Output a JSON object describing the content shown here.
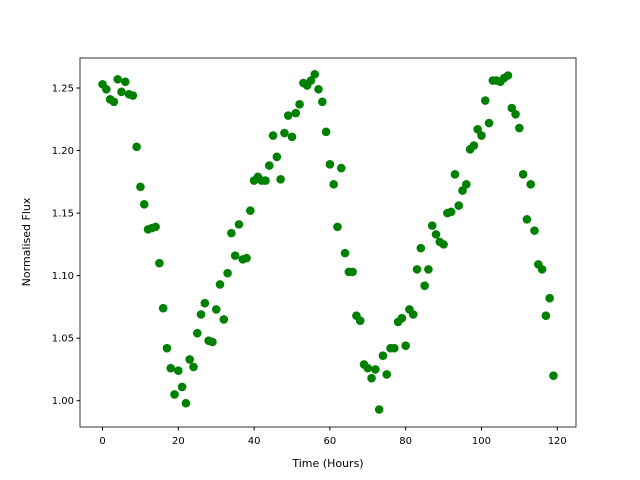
{
  "chart_data": {
    "type": "scatter",
    "xlabel": "Time (Hours)",
    "ylabel": "Normalised Flux",
    "color": "#008000",
    "x": [
      0,
      1,
      2,
      3,
      4,
      5,
      6,
      7,
      8,
      9,
      10,
      11,
      12,
      13,
      14,
      15,
      16,
      17,
      18,
      19,
      20,
      21,
      22,
      23,
      24,
      25,
      26,
      27,
      28,
      29,
      30,
      31,
      32,
      33,
      34,
      35,
      36,
      37,
      38,
      39,
      40,
      41,
      42,
      43,
      44,
      45,
      46,
      47,
      48,
      49,
      50,
      51,
      52,
      53,
      54,
      55,
      56,
      57,
      58,
      59,
      60,
      61,
      62,
      63,
      64,
      65,
      66,
      67,
      68,
      69,
      70,
      71,
      72,
      73,
      74,
      75,
      76,
      77,
      78,
      79,
      80,
      81,
      82,
      83,
      84,
      85,
      86,
      87,
      88,
      89,
      90,
      91,
      92,
      93,
      94,
      95,
      96,
      97,
      98,
      99,
      100,
      101,
      102,
      103,
      104,
      105,
      106,
      107,
      108,
      109,
      110,
      111,
      112,
      113,
      114,
      115,
      116,
      117,
      118,
      119
    ],
    "values": [
      1.253,
      1.249,
      1.241,
      1.239,
      1.257,
      1.247,
      1.255,
      1.245,
      1.244,
      1.203,
      1.171,
      1.157,
      1.137,
      1.138,
      1.139,
      1.11,
      1.074,
      1.042,
      1.026,
      1.005,
      1.024,
      1.011,
      0.998,
      1.033,
      1.027,
      1.054,
      1.069,
      1.078,
      1.048,
      1.047,
      1.073,
      1.093,
      1.065,
      1.102,
      1.134,
      1.116,
      1.141,
      1.113,
      1.114,
      1.152,
      1.176,
      1.179,
      1.176,
      1.176,
      1.188,
      1.212,
      1.195,
      1.177,
      1.214,
      1.228,
      1.211,
      1.23,
      1.237,
      1.254,
      1.252,
      1.256,
      1.261,
      1.249,
      1.239,
      1.215,
      1.189,
      1.173,
      1.139,
      1.186,
      1.118,
      1.103,
      1.103,
      1.068,
      1.064,
      1.029,
      1.026,
      1.018,
      1.025,
      0.993,
      1.036,
      1.021,
      1.042,
      1.042,
      1.063,
      1.066,
      1.044,
      1.073,
      1.069,
      1.105,
      1.122,
      1.092,
      1.105,
      1.14,
      1.133,
      1.127,
      1.125,
      1.15,
      1.151,
      1.181,
      1.156,
      1.168,
      1.173,
      1.201,
      1.204,
      1.217,
      1.212,
      1.24,
      1.222,
      1.256,
      1.256,
      1.255,
      1.258,
      1.26,
      1.234,
      1.229,
      1.218,
      1.181,
      1.145,
      1.173,
      1.136,
      1.109,
      1.105,
      1.068,
      1.082,
      1.02
    ],
    "xlim": [
      -5.95,
      124.95
    ],
    "ylim": [
      0.979,
      1.274
    ],
    "xticks": [
      0,
      20,
      40,
      60,
      80,
      100,
      120
    ],
    "yticks": [
      {
        "value": 1.0,
        "label": "1.00"
      },
      {
        "value": 1.05,
        "label": "1.05"
      },
      {
        "value": 1.1,
        "label": "1.10"
      },
      {
        "value": 1.15,
        "label": "1.15"
      },
      {
        "value": 1.2,
        "label": "1.20"
      },
      {
        "value": 1.25,
        "label": "1.25"
      }
    ],
    "grid": false
  }
}
